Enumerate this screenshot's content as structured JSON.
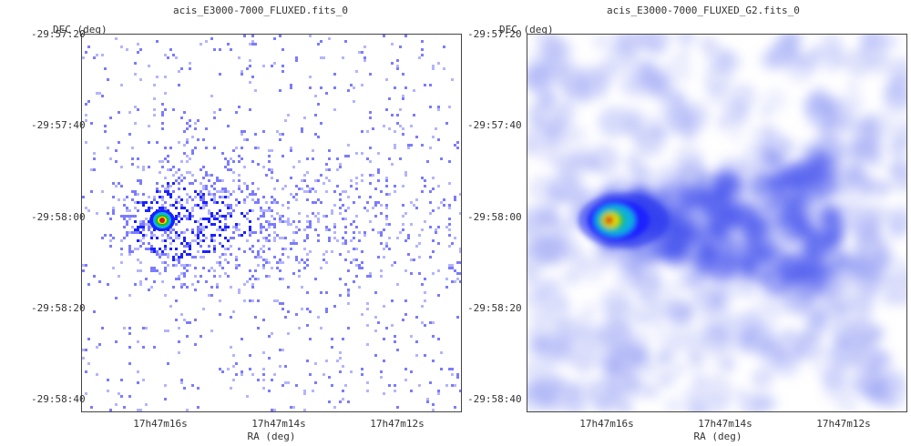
{
  "panels": [
    {
      "title": "acis_E3000-7000_FLUXED.fits_0",
      "y_axis_label": "DEC (deg)",
      "x_axis_label": "RA (deg)",
      "y_ticks": [
        "-29:57:20",
        "-29:57:40",
        "-29:58:00",
        "-29:58:20",
        "-29:58:40"
      ],
      "x_ticks": [
        "17h47m16s",
        "17h47m14s",
        "17h47m12s"
      ],
      "style": "raw counts (sparse pixels)"
    },
    {
      "title": "acis_E3000-7000_FLUXED_G2.fits_0",
      "y_axis_label": "DEC (deg)",
      "x_axis_label": "RA (deg)",
      "y_ticks": [
        "-29:57:20",
        "-29:57:40",
        "-29:58:00",
        "-29:58:20",
        "-29:58:40"
      ],
      "x_ticks": [
        "17h47m16s",
        "17h47m14s",
        "17h47m12s"
      ],
      "style": "gaussian smoothed"
    }
  ],
  "colors": {
    "pixel": "#7b7bff",
    "pixel_light": "#b4b4ff",
    "core_red": "#d01818",
    "core_yellow": "#f2e600",
    "core_green": "#1bc01b",
    "core_cyan": "#10b0e0",
    "core_blue": "#1a22ff"
  }
}
